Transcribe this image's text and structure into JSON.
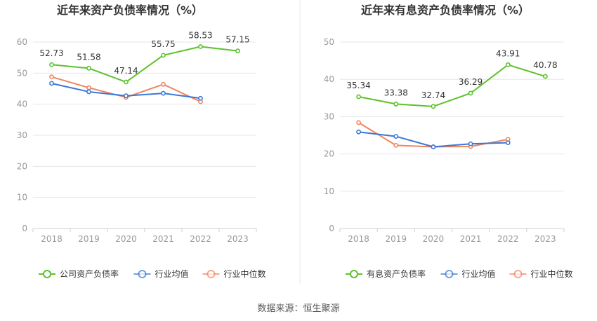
{
  "source": "数据来源：恒生聚源",
  "colors": {
    "company": "#5cc22b",
    "industry_avg": "#3b77d6",
    "industry_median": "#f0855e",
    "grid": "#e6e6e6",
    "axis": "#cfcfcf",
    "title": "#333333",
    "tick": "#999999",
    "divider": "#e8e8e8"
  },
  "chart_data": [
    {
      "type": "line",
      "title": "近年来资产负债率情况（%）",
      "categories": [
        "2018",
        "2019",
        "2020",
        "2021",
        "2022",
        "2023"
      ],
      "ylim": [
        0,
        60
      ],
      "yticks": [
        0,
        10,
        20,
        30,
        40,
        50,
        60
      ],
      "grid": true,
      "legend_position": "bottom",
      "series": [
        {
          "name": "公司资产负债率",
          "color_key": "company",
          "values": [
            52.73,
            51.58,
            47.14,
            55.75,
            58.53,
            57.15
          ],
          "labels": [
            "52.73",
            "51.58",
            "47.14",
            "55.75",
            "58.53",
            "57.15"
          ]
        },
        {
          "name": "行业均值",
          "color_key": "industry_avg",
          "values": [
            46.7,
            44.0,
            42.7,
            43.5,
            41.9,
            null
          ]
        },
        {
          "name": "行业中位数",
          "color_key": "industry_median",
          "values": [
            48.8,
            45.3,
            42.2,
            46.4,
            40.8,
            null
          ]
        }
      ]
    },
    {
      "type": "line",
      "title": "近年来有息资产负债率情况（%）",
      "categories": [
        "2018",
        "2019",
        "2020",
        "2021",
        "2022",
        "2023"
      ],
      "ylim": [
        0,
        50
      ],
      "yticks": [
        0,
        10,
        20,
        30,
        40,
        50
      ],
      "grid": true,
      "legend_position": "bottom",
      "series": [
        {
          "name": "有息资产负债率",
          "color_key": "company",
          "values": [
            35.34,
            33.38,
            32.74,
            36.29,
            43.91,
            40.78
          ],
          "labels": [
            "35.34",
            "33.38",
            "32.74",
            "36.29",
            "43.91",
            "40.78"
          ]
        },
        {
          "name": "行业均值",
          "color_key": "industry_avg",
          "values": [
            25.9,
            24.7,
            21.9,
            22.7,
            23.0,
            null
          ]
        },
        {
          "name": "行业中位数",
          "color_key": "industry_median",
          "values": [
            28.4,
            22.3,
            21.9,
            22.0,
            23.9,
            null
          ]
        }
      ]
    }
  ]
}
